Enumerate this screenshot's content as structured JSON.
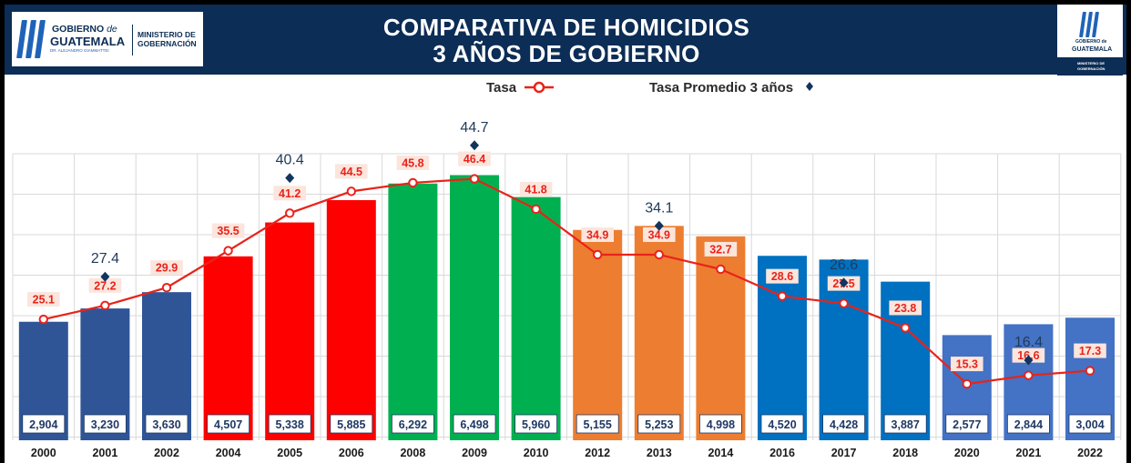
{
  "header": {
    "title_line1": "COMPARATIVA DE HOMICIDIOS",
    "title_line2": "3 AÑOS DE GOBIERNO",
    "logo_left": {
      "gobierno": "GOBIERNO",
      "de": "de",
      "guatemala": "GUATEMALA",
      "subtitle": "DR. ALEJANDRO GIAMMATTEI",
      "ministerio_line1": "MINISTERIO DE",
      "ministerio_line2": "GOBERNACIÓN"
    },
    "logo_right": {
      "gobierno": "GOBIERNO de",
      "guatemala": "GUATEMALA",
      "ministerio_line1": "MINISTERIO DE",
      "ministerio_line2": "GOBERNACIÓN"
    }
  },
  "legend": {
    "tasa": "Tasa",
    "promedio": "Tasa Promedio 3 años"
  },
  "colors": {
    "header_bg": "#0c2d55",
    "rate_line": "#e8231a",
    "avg_marker": "#12345e",
    "grid": "#d9d9d9"
  },
  "chart_data": {
    "type": "bar",
    "categories": [
      "2000",
      "2001",
      "2002",
      "2004",
      "2005",
      "2006",
      "2008",
      "2009",
      "2010",
      "2012",
      "2013",
      "2014",
      "2016",
      "2017",
      "2018",
      "2020",
      "2021",
      "2022"
    ],
    "series": [
      {
        "name": "Homicidios",
        "values": [
          2904,
          3230,
          3630,
          4507,
          5338,
          5885,
          6292,
          6498,
          5960,
          5155,
          5253,
          4998,
          4520,
          4428,
          3887,
          2577,
          2844,
          3004
        ],
        "labels": [
          "2,904",
          "3,230",
          "3,630",
          "4,507",
          "5,338",
          "5,885",
          "6,292",
          "6,498",
          "5,960",
          "5,155",
          "5,253",
          "4,998",
          "4,520",
          "4,428",
          "3,887",
          "2,577",
          "2,844",
          "3,004"
        ],
        "colors": [
          "#2f5597",
          "#2f5597",
          "#2f5597",
          "#ff0000",
          "#ff0000",
          "#ff0000",
          "#00b050",
          "#00b050",
          "#00b050",
          "#ed7d31",
          "#ed7d31",
          "#ed7d31",
          "#0070c0",
          "#0070c0",
          "#0070c0",
          "#4472c4",
          "#4472c4",
          "#4472c4"
        ]
      },
      {
        "name": "Tasa",
        "type": "line",
        "values": [
          25.1,
          27.2,
          29.9,
          35.5,
          41.2,
          44.5,
          45.8,
          46.4,
          41.8,
          34.9,
          34.9,
          32.7,
          28.6,
          27.5,
          23.8,
          15.3,
          16.6,
          17.3
        ],
        "labels": [
          "25.1",
          "27.2",
          "29.9",
          "35.5",
          "41.2",
          "44.5",
          "45.8",
          "46.4",
          "41.8",
          "34.9",
          "34.9",
          "32.7",
          "28.6",
          "27.5",
          "23.8",
          "15.3",
          "16.6",
          "17.3"
        ]
      },
      {
        "name": "Tasa Promedio 3 años",
        "type": "scatter",
        "points": [
          {
            "category": "2001",
            "value": 27.4,
            "label": "27.4"
          },
          {
            "category": "2005",
            "value": 40.4,
            "label": "40.4"
          },
          {
            "category": "2009",
            "value": 44.7,
            "label": "44.7"
          },
          {
            "category": "2013",
            "value": 34.1,
            "label": "34.1"
          },
          {
            "category": "2017",
            "value": 26.6,
            "label": "26.6"
          },
          {
            "category": "2021",
            "value": 16.4,
            "label": "16.4"
          }
        ]
      }
    ],
    "title": "COMPARATIVA DE HOMICIDIOS 3 AÑOS DE GOBIERNO",
    "bar_ylim": [
      0,
      7000
    ],
    "rate_ylim": [
      0,
      50
    ],
    "grid": true,
    "legend_position": "top"
  }
}
